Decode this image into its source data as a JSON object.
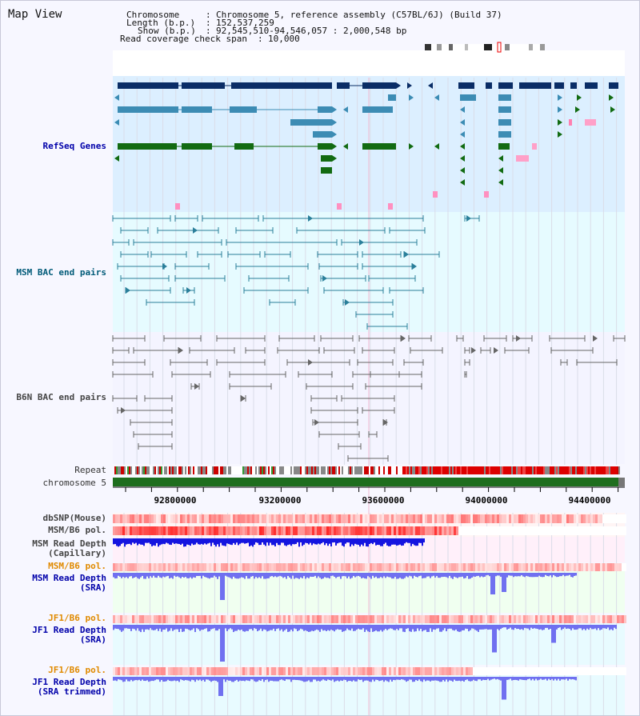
{
  "header": {
    "title": "Map View",
    "chromosome_label": "Chromosome",
    "chromosome_value": "Chromosome 5, reference assembly (C57BL/6J) (Build 37)",
    "length_label": "Length (b.p.)",
    "length_value": "152,537,259",
    "show_label": "Show (b.p.)",
    "show_value": "92,545,510-94,546,057 : 2,000,548 bp",
    "coverage_label": "Read coverage check span",
    "coverage_value": "10,000"
  },
  "tracks": {
    "refseq": "RefSeq Genes",
    "msm_bac": "MSM BAC end pairs",
    "b6n_bac": "B6N BAC end pairs",
    "repeat": "Repeat",
    "chromosome": "chromosome 5",
    "dbsnp": "dbSNP(Mouse)",
    "msm_b6_pol": "MSM/B6 pol.",
    "msm_depth_cap_1": "MSM Read Depth",
    "msm_depth_cap_2": "(Capillary)",
    "msm_b6_pol_2": "MSM/B6 pol.",
    "msm_depth_sra_1": "MSM Read Depth",
    "msm_depth_sra_2": "(SRA)",
    "jf1_b6_pol": "JF1/B6 pol.",
    "jf1_depth_sra_1": "JF1 Read Depth",
    "jf1_depth_sra_2": "(SRA)",
    "jf1_b6_pol_2": "JF1/B6 pol.",
    "jf1_depth_trim_1": "JF1 Read Depth",
    "jf1_depth_trim_2": "(SRA trimmed)"
  },
  "axis": {
    "ticks": [
      "92800000",
      "93200000",
      "93600000",
      "94000000",
      "94400000"
    ]
  },
  "colors": {
    "refseq_bg": "#dcefff",
    "bac_bg": "#e6fbff",
    "gene_dark": "#0a2d66",
    "gene_mid": "#3c8cb4",
    "gene_green": "#126b12",
    "msm_bac": "#2a7f9a",
    "b6n_bac": "#666666",
    "depth_dark": "#1414e0",
    "depth_light": "#7070f0"
  }
}
